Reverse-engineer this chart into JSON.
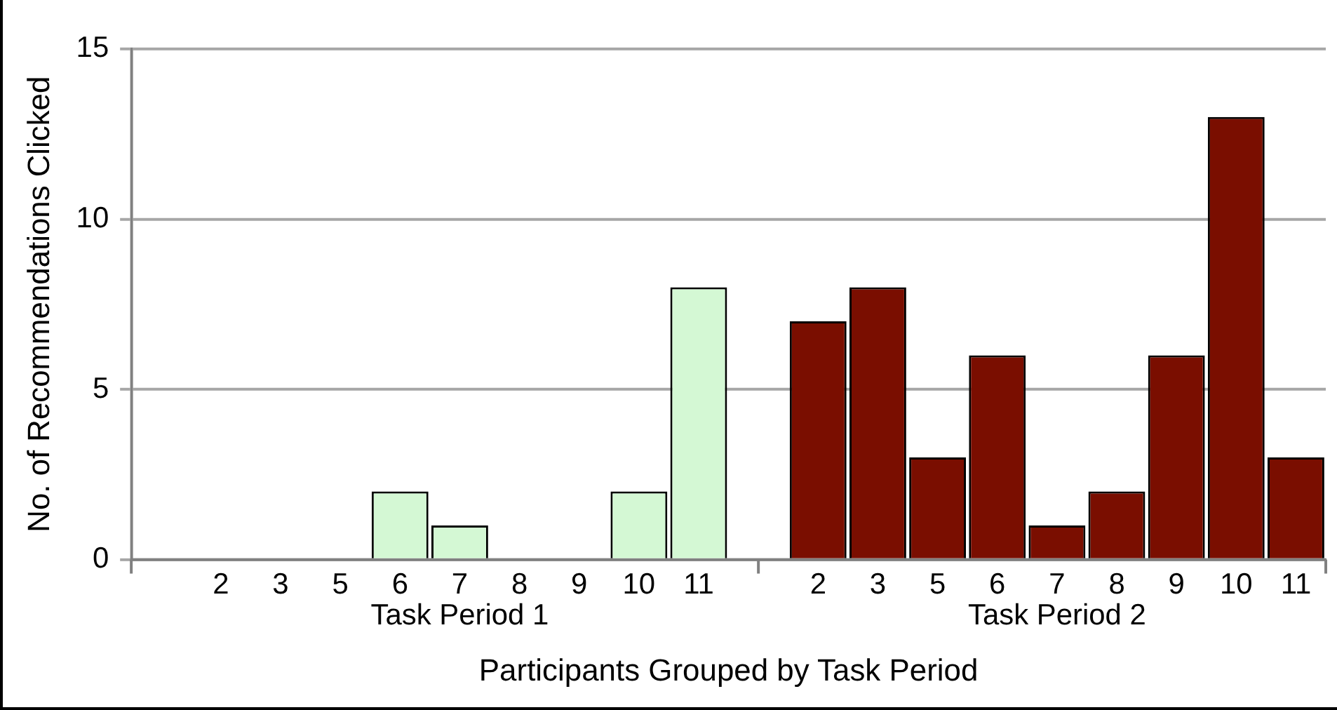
{
  "chart_data": {
    "type": "bar",
    "xlabel": "Participants Grouped by Task Period",
    "ylabel": "No. of Recommendations Clicked",
    "categories": [
      null,
      "2",
      "3",
      "5",
      "6",
      "7",
      "8",
      "9",
      "10",
      "11",
      null,
      "2",
      "3",
      "5",
      "6",
      "7",
      "8",
      "9",
      "10",
      "11"
    ],
    "values": [
      null,
      0,
      0,
      0,
      2,
      1,
      0,
      0,
      2,
      8,
      null,
      7,
      8,
      3,
      6,
      1,
      2,
      6,
      13,
      3
    ],
    "colors": [
      "#d4f8d4",
      "#d4f8d4",
      "#d4f8d4",
      "#d4f8d4",
      "#d4f8d4",
      "#d4f8d4",
      "#d4f8d4",
      "#d4f8d4",
      "#d4f8d4",
      "#d4f8d4",
      "#7a0e00",
      "#7a0e00",
      "#7a0e00",
      "#7a0e00",
      "#7a0e00",
      "#7a0e00",
      "#7a0e00",
      "#7a0e00",
      "#7a0e00",
      "#7a0e00"
    ],
    "annotations": [
      "Task Period 1",
      "Task Period 2"
    ],
    "ylim": [
      0,
      15
    ],
    "yticks": [
      0,
      5,
      10,
      15
    ],
    "grid": "y",
    "legend": false
  }
}
